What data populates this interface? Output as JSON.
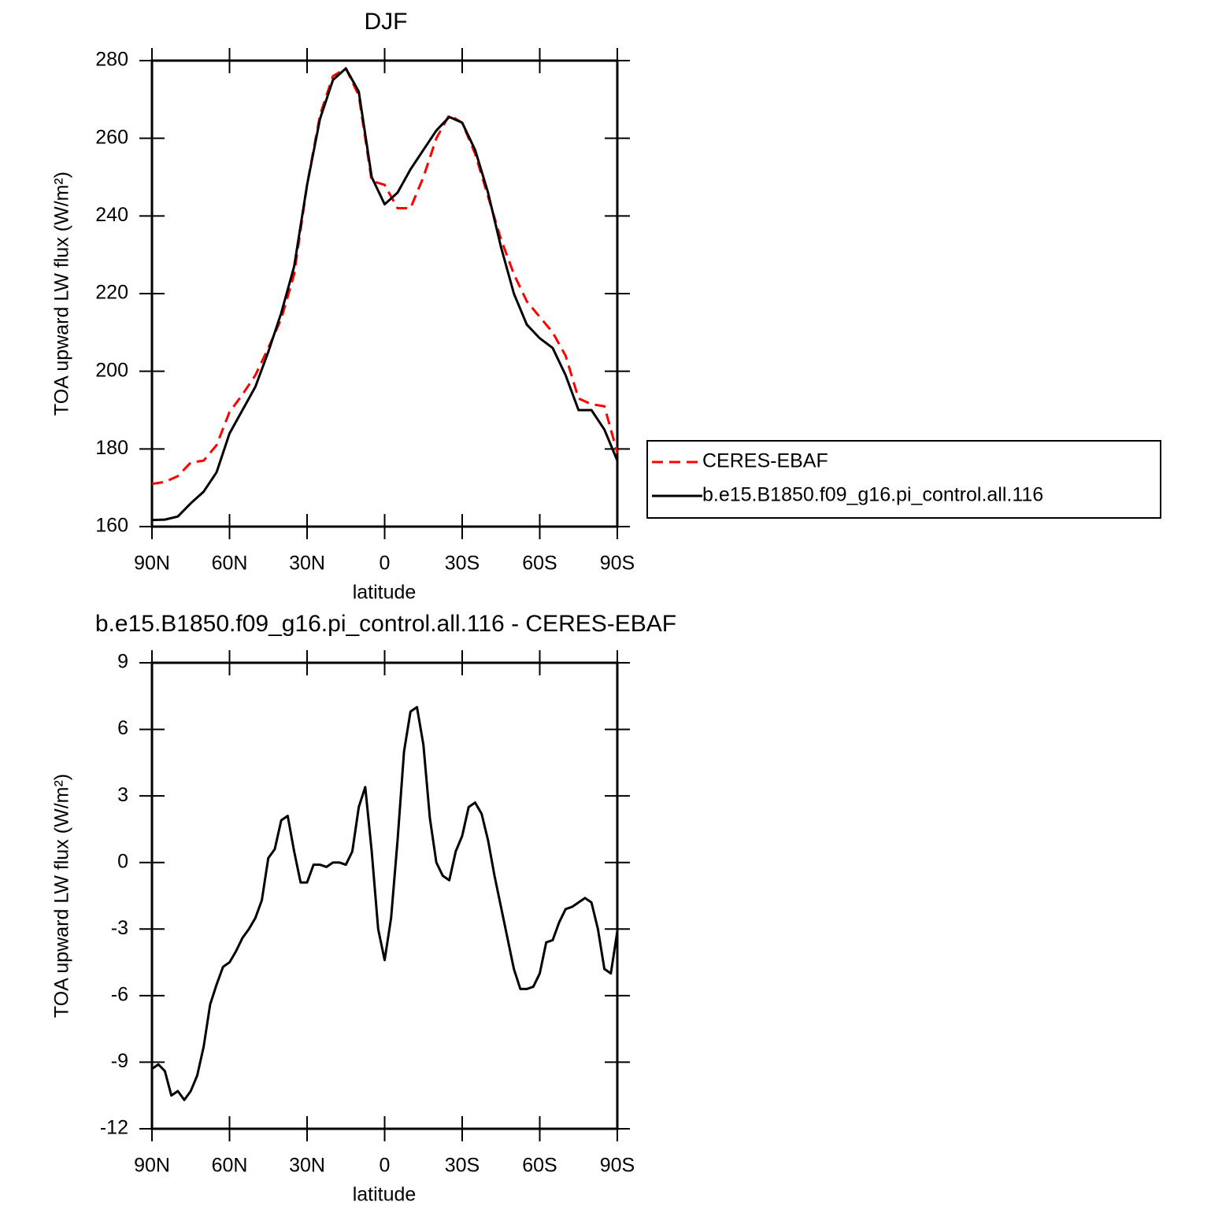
{
  "chart_data": [
    {
      "type": "line",
      "title": "DJF",
      "xlabel": "latitude",
      "ylabel": "TOA upward LW flux (W/m²)",
      "x": [
        90,
        85,
        80,
        75,
        70,
        65,
        60,
        55,
        50,
        45,
        40,
        35,
        30,
        25,
        20,
        15,
        10,
        5,
        0,
        -5,
        -10,
        -15,
        -20,
        -25,
        -30,
        -35,
        -40,
        -45,
        -50,
        -55,
        -60,
        -65,
        -70,
        -75,
        -80,
        -85,
        -90
      ],
      "xlim": [
        90,
        -90
      ],
      "xticks": [
        {
          "value": 90,
          "label": "90N"
        },
        {
          "value": 60,
          "label": "60N"
        },
        {
          "value": 30,
          "label": "30N"
        },
        0,
        {
          "value": -30,
          "label": "30S"
        },
        {
          "value": -60,
          "label": "60S"
        },
        {
          "value": -90,
          "label": "90S"
        }
      ],
      "ylim": [
        160,
        280
      ],
      "yticks": [
        160,
        180,
        200,
        220,
        240,
        260,
        280
      ],
      "legend": "right",
      "series": [
        {
          "name": "CERES-EBAF",
          "color": "#ff0000",
          "dashed": true,
          "values": [
            171,
            171.5,
            173,
            176.5,
            177,
            181,
            189.5,
            194,
            199,
            206,
            213.5,
            225,
            248,
            266,
            276,
            278,
            271,
            249,
            248,
            242,
            242,
            250,
            260,
            266,
            264,
            256,
            245,
            234,
            225,
            218,
            214,
            210,
            204,
            193,
            191.5,
            191,
            179
          ]
        },
        {
          "name": "b.e15.B1850.f09_g16.pi_control.all.116",
          "color": "#000000",
          "dashed": false,
          "values": [
            161.7,
            161.8,
            162.6,
            166,
            169,
            174,
            184,
            190,
            196,
            205,
            215,
            227,
            248,
            265,
            275,
            278,
            272,
            250,
            243,
            246,
            252,
            257,
            262,
            265.5,
            264,
            257,
            246,
            232,
            220,
            212,
            208.5,
            206,
            199,
            190,
            190,
            185,
            177
          ]
        }
      ]
    },
    {
      "type": "line",
      "title": "b.e15.B1850.f09_g16.pi_control.all.116 - CERES-EBAF",
      "xlabel": "latitude",
      "ylabel": "TOA upward LW flux (W/m²)",
      "x": [
        90,
        87.5,
        85,
        82.5,
        80,
        77.5,
        75,
        72.5,
        70,
        67.5,
        65,
        62.5,
        60,
        57.5,
        55,
        52.5,
        50,
        47.5,
        45,
        42.5,
        40,
        37.5,
        35,
        32.5,
        30,
        27.5,
        25,
        22.5,
        20,
        17.5,
        15,
        12.5,
        10,
        7.5,
        5,
        2.5,
        0,
        -2.5,
        -5,
        -7.5,
        -10,
        -12.5,
        -15,
        -17.5,
        -20,
        -22.5,
        -25,
        -27.5,
        -30,
        -32.5,
        -35,
        -37.5,
        -40,
        -42.5,
        -45,
        -47.5,
        -50,
        -52.5,
        -55,
        -57.5,
        -60,
        -62.5,
        -65,
        -67.5,
        -70,
        -72.5,
        -75,
        -77.5,
        -80,
        -82.5,
        -85,
        -87.5,
        -90
      ],
      "xlim": [
        90,
        -90
      ],
      "xticks": [
        {
          "value": 90,
          "label": "90N"
        },
        {
          "value": 60,
          "label": "60N"
        },
        {
          "value": 30,
          "label": "30N"
        },
        0,
        {
          "value": -30,
          "label": "30S"
        },
        {
          "value": -60,
          "label": "60S"
        },
        {
          "value": -90,
          "label": "90S"
        }
      ],
      "ylim": [
        -12,
        9
      ],
      "yticks": [
        -12,
        -9,
        -6,
        -3,
        0,
        3,
        6,
        9
      ],
      "color": "#000000",
      "values": [
        -9.3,
        -9.1,
        -9.4,
        -10.5,
        -10.3,
        -10.7,
        -10.3,
        -9.6,
        -8.3,
        -6.4,
        -5.5,
        -4.7,
        -4.5,
        -4.0,
        -3.4,
        -3.0,
        -2.5,
        -1.7,
        0.2,
        0.6,
        1.9,
        2.1,
        0.5,
        -0.9,
        -0.9,
        -0.1,
        -0.1,
        -0.2,
        0,
        0,
        -0.1,
        0.5,
        2.5,
        3.4,
        0.5,
        -3.0,
        -4.4,
        -2.5,
        1.0,
        5.0,
        6.8,
        7.0,
        5.3,
        2.0,
        0,
        -0.6,
        -0.8,
        0.5,
        1.2,
        2.5,
        2.7,
        2.2,
        1.0,
        -0.6,
        -2.0,
        -3.4,
        -4.8,
        -5.7,
        -5.7,
        -5.6,
        -5.0,
        -3.6,
        -3.5,
        -2.7,
        -2.1,
        -2.0,
        -1.8,
        -1.6,
        -1.8,
        -3.0,
        -4.8,
        -5.0,
        -3.1
      ]
    }
  ]
}
